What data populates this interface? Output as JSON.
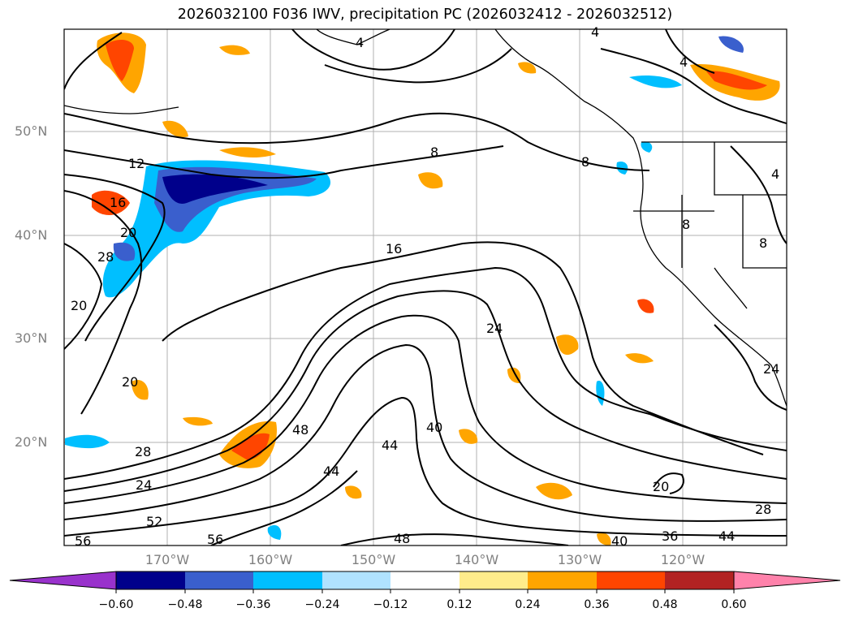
{
  "title": "2026032100 F036 IWV, precipitation PC (2026032412 - 2026032512)",
  "lat_labels": [
    "50°N",
    "40°N",
    "30°N",
    "20°N"
  ],
  "lon_labels": [
    "170°W",
    "160°W",
    "150°W",
    "140°W",
    "130°W",
    "120°W"
  ],
  "contour_labels": [
    "4",
    "4",
    "4",
    "4",
    "8",
    "8",
    "8",
    "8",
    "12",
    "16",
    "16",
    "20",
    "20",
    "20",
    "20",
    "24",
    "24",
    "24",
    "28",
    "28",
    "28",
    "36",
    "40",
    "40",
    "44",
    "44",
    "44",
    "48",
    "48",
    "52",
    "56",
    "56"
  ],
  "colorbar": {
    "ticks": [
      "−0.60",
      "−0.48",
      "−0.36",
      "−0.24",
      "−0.12",
      "0.12",
      "0.24",
      "0.36",
      "0.48",
      "0.60"
    ],
    "colors": [
      "#9932cc",
      "#00008b",
      "#3a5fcd",
      "#00bfff",
      "#b0e2ff",
      "#ffffff",
      "#ffec8b",
      "#ffa500",
      "#ff4500",
      "#b22222",
      "#ff82ab"
    ]
  },
  "palette": {
    "grid": "#b0b0b0",
    "contour": "#000000",
    "coast": "#000000",
    "axis_text": "#808080"
  }
}
